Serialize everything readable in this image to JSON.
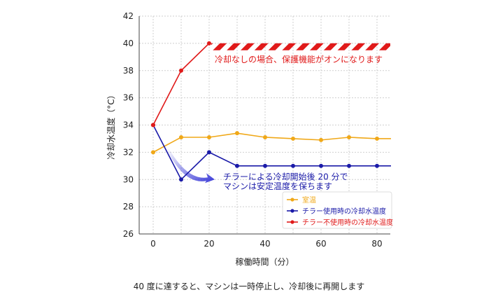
{
  "caption": "40 度に達すると、マシンは一時停止し、冷却後に再開します",
  "chart_data": {
    "type": "line",
    "xlabel": "稼働時間（分）",
    "ylabel": "冷却水温度（°C）",
    "xlim": [
      0,
      85
    ],
    "ylim": [
      26,
      42
    ],
    "xticks": [
      0,
      20,
      40,
      60,
      80
    ],
    "yticks": [
      26,
      28,
      30,
      32,
      34,
      36,
      38,
      40,
      42
    ],
    "grid": true,
    "legend_position": "bottom-right",
    "series": [
      {
        "name": "室温",
        "color": "#f0a818",
        "x": [
          0,
          10,
          20,
          30,
          40,
          50,
          60,
          70,
          80,
          85
        ],
        "y": [
          32,
          33.1,
          33.1,
          33.4,
          33.1,
          33.0,
          32.9,
          33.1,
          33.0,
          33.0
        ],
        "markers": [
          true,
          true,
          true,
          true,
          true,
          true,
          true,
          true,
          true,
          false
        ]
      },
      {
        "name": "チラー使用時の冷却水温度",
        "color": "#1a1aa8",
        "x": [
          0,
          10,
          20,
          30,
          40,
          50,
          60,
          70,
          80,
          85
        ],
        "y": [
          34,
          30,
          32,
          31,
          31,
          31,
          31,
          31,
          31,
          31
        ],
        "markers": [
          true,
          true,
          true,
          true,
          true,
          true,
          true,
          true,
          true,
          false
        ]
      },
      {
        "name": "チラー不使用時の冷却水温度",
        "color": "#e01a1a",
        "x": [
          0,
          10,
          20
        ],
        "y": [
          34,
          38,
          40
        ],
        "markers": [
          true,
          true,
          true
        ]
      }
    ],
    "hatched_band": {
      "x_start": 20,
      "x_end": 85,
      "y": 39.8,
      "color": "#e01a1a"
    },
    "annotations": [
      {
        "id": "protection",
        "text": "冷却なしの場合、保護機能がオンになります",
        "color": "#e01a1a",
        "x": 22,
        "y": 38.8
      },
      {
        "id": "stable_1",
        "text": "チラーによる冷却開始後 20 分で",
        "color": "#1a1aa8",
        "x": 25,
        "y": 30.2
      },
      {
        "id": "stable_2",
        "text": "マシンは安定温度を保ちます",
        "color": "#1a1aa8",
        "x": 25,
        "y": 29.5
      }
    ],
    "arrow": {
      "from": [
        5.5,
        32.3
      ],
      "to": [
        22,
        30.0
      ],
      "color": "#3a3ad8"
    }
  }
}
